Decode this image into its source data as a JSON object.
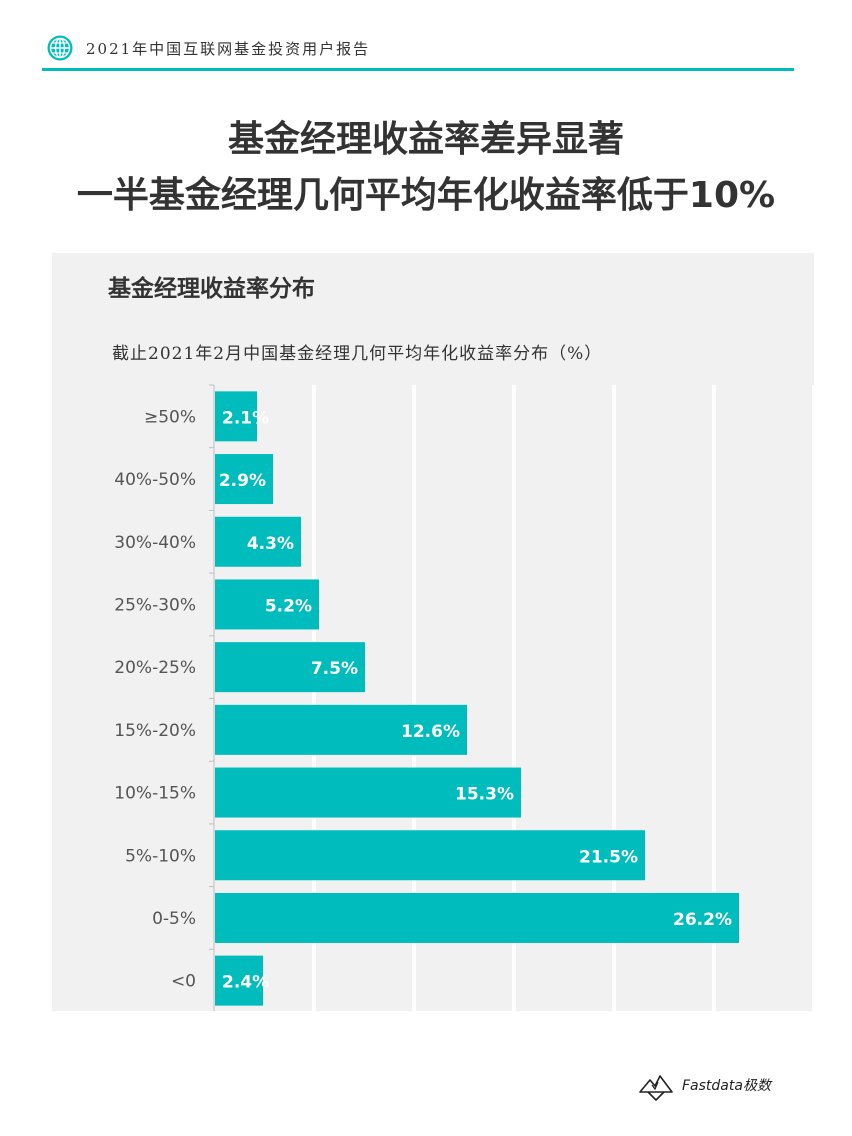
{
  "header": {
    "report_title": "2021年中国互联网基金投资用户报告"
  },
  "headline": {
    "line1": "基金经理收益率差异显著",
    "line2": "一半基金经理几何平均年化收益率低于10%"
  },
  "chart_data": {
    "type": "bar",
    "orientation": "horizontal",
    "title": "基金经理收益率分布",
    "subtitle": "截止2021年2月中国基金经理几何平均年化收益率分布（%）",
    "categories": [
      "≥50%",
      "40%-50%",
      "30%-40%",
      "25%-30%",
      "20%-25%",
      "15%-20%",
      "10%-15%",
      "5%-10%",
      "0-5%",
      "<0"
    ],
    "values": [
      2.1,
      2.9,
      4.3,
      5.2,
      7.5,
      12.6,
      15.3,
      21.5,
      26.2,
      2.4
    ],
    "labels": [
      "2.1%",
      "2.9%",
      "4.3%",
      "5.2%",
      "7.5%",
      "12.6%",
      "15.3%",
      "21.5%",
      "26.2%",
      "2.4%"
    ],
    "xlim": [
      0,
      30
    ],
    "grid": true,
    "bar_color": "#00bcbd"
  },
  "footer": {
    "brand": "Fastdata极数"
  }
}
